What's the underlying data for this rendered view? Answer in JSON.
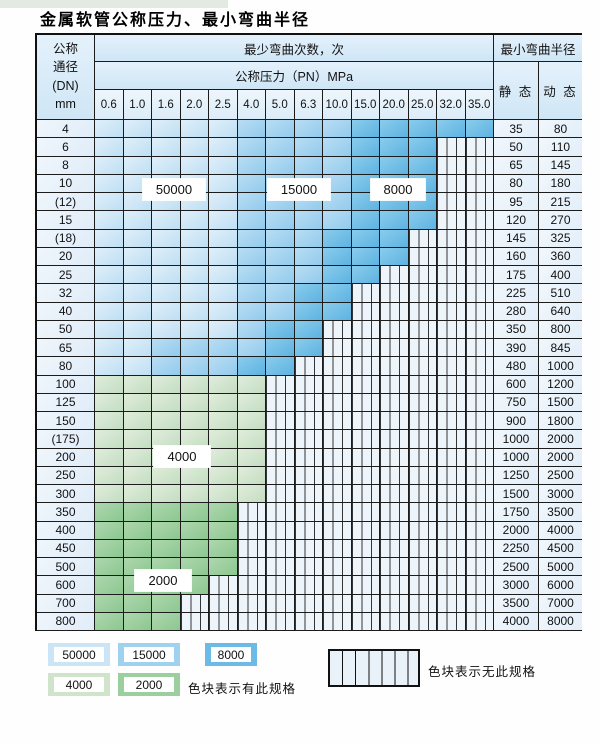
{
  "title": "金属软管公称压力、最小弯曲半径",
  "table": {
    "corner": {
      "line1": "公称",
      "line2": "通径",
      "line3": "(DN)",
      "line4": "mm"
    },
    "bend_header": "最少弯曲次数，次",
    "pressure_header": "公称压力（PN）MPa",
    "radius_header": "最小弯曲半径",
    "static_label": "静 态",
    "dynamic_label": "动 态",
    "pressures": [
      "0.6",
      "1.0",
      "1.6",
      "2.0",
      "2.5",
      "4.0",
      "5.0",
      "6.3",
      "10.0",
      "15.0",
      "20.0",
      "25.0",
      "32.0",
      "35.0"
    ],
    "rows": [
      {
        "dn": "4",
        "static": "35",
        "dynamic": "80",
        "cells": [
          "50000",
          "50000",
          "50000",
          "50000",
          "50000",
          "15000",
          "15000",
          "15000",
          "15000",
          "8000",
          "8000",
          "8000",
          "8000",
          "8000"
        ]
      },
      {
        "dn": "6",
        "static": "50",
        "dynamic": "110",
        "cells": [
          "50000",
          "50000",
          "50000",
          "50000",
          "50000",
          "15000",
          "15000",
          "15000",
          "15000",
          "8000",
          "8000",
          "8000",
          "",
          ""
        ]
      },
      {
        "dn": "8",
        "static": "65",
        "dynamic": "145",
        "cells": [
          "50000",
          "50000",
          "50000",
          "50000",
          "50000",
          "15000",
          "15000",
          "15000",
          "15000",
          "8000",
          "8000",
          "8000",
          "",
          ""
        ]
      },
      {
        "dn": "10",
        "static": "80",
        "dynamic": "180",
        "cells": [
          "50000",
          "50000",
          "50000",
          "50000",
          "50000",
          "15000",
          "15000",
          "15000",
          "15000",
          "8000",
          "8000",
          "8000",
          "",
          ""
        ]
      },
      {
        "dn": "(12)",
        "static": "95",
        "dynamic": "215",
        "cells": [
          "50000",
          "50000",
          "50000",
          "50000",
          "50000",
          "15000",
          "15000",
          "15000",
          "15000",
          "8000",
          "8000",
          "8000",
          "",
          ""
        ]
      },
      {
        "dn": "15",
        "static": "120",
        "dynamic": "270",
        "cells": [
          "50000",
          "50000",
          "50000",
          "50000",
          "50000",
          "15000",
          "15000",
          "15000",
          "15000",
          "8000",
          "8000",
          "8000",
          "",
          ""
        ]
      },
      {
        "dn": "(18)",
        "static": "145",
        "dynamic": "325",
        "cells": [
          "50000",
          "50000",
          "50000",
          "50000",
          "50000",
          "15000",
          "15000",
          "15000",
          "8000",
          "8000",
          "8000",
          "",
          "",
          ""
        ]
      },
      {
        "dn": "20",
        "static": "160",
        "dynamic": "360",
        "cells": [
          "50000",
          "50000",
          "50000",
          "50000",
          "50000",
          "15000",
          "15000",
          "15000",
          "8000",
          "8000",
          "8000",
          "",
          "",
          ""
        ]
      },
      {
        "dn": "25",
        "static": "175",
        "dynamic": "400",
        "cells": [
          "50000",
          "50000",
          "50000",
          "50000",
          "50000",
          "15000",
          "15000",
          "15000",
          "8000",
          "8000",
          "",
          "",
          "",
          ""
        ]
      },
      {
        "dn": "32",
        "static": "225",
        "dynamic": "510",
        "cells": [
          "50000",
          "50000",
          "50000",
          "50000",
          "50000",
          "15000",
          "15000",
          "8000",
          "8000",
          "",
          "",
          "",
          "",
          ""
        ]
      },
      {
        "dn": "40",
        "static": "280",
        "dynamic": "640",
        "cells": [
          "50000",
          "50000",
          "50000",
          "50000",
          "50000",
          "15000",
          "15000",
          "8000",
          "8000",
          "",
          "",
          "",
          "",
          ""
        ]
      },
      {
        "dn": "50",
        "static": "350",
        "dynamic": "800",
        "cells": [
          "50000",
          "50000",
          "50000",
          "50000",
          "50000",
          "15000",
          "8000",
          "8000",
          "",
          "",
          "",
          "",
          "",
          ""
        ]
      },
      {
        "dn": "65",
        "static": "390",
        "dynamic": "845",
        "cells": [
          "50000",
          "50000",
          "15000",
          "15000",
          "15000",
          "15000",
          "8000",
          "8000",
          "",
          "",
          "",
          "",
          "",
          ""
        ]
      },
      {
        "dn": "80",
        "static": "480",
        "dynamic": "1000",
        "cells": [
          "50000",
          "50000",
          "15000",
          "15000",
          "15000",
          "8000",
          "8000",
          "",
          "",
          "",
          "",
          "",
          "",
          ""
        ]
      },
      {
        "dn": "100",
        "static": "600",
        "dynamic": "1200",
        "cells": [
          "4000",
          "4000",
          "4000",
          "4000",
          "4000",
          "4000",
          "",
          "",
          "",
          "",
          "",
          "",
          "",
          ""
        ]
      },
      {
        "dn": "125",
        "static": "750",
        "dynamic": "1500",
        "cells": [
          "4000",
          "4000",
          "4000",
          "4000",
          "4000",
          "4000",
          "",
          "",
          "",
          "",
          "",
          "",
          "",
          ""
        ]
      },
      {
        "dn": "150",
        "static": "900",
        "dynamic": "1800",
        "cells": [
          "4000",
          "4000",
          "4000",
          "4000",
          "4000",
          "4000",
          "",
          "",
          "",
          "",
          "",
          "",
          "",
          ""
        ]
      },
      {
        "dn": "(175)",
        "static": "1000",
        "dynamic": "2000",
        "cells": [
          "4000",
          "4000",
          "4000",
          "4000",
          "4000",
          "4000",
          "",
          "",
          "",
          "",
          "",
          "",
          "",
          ""
        ]
      },
      {
        "dn": "200",
        "static": "1000",
        "dynamic": "2000",
        "cells": [
          "4000",
          "4000",
          "4000",
          "4000",
          "4000",
          "4000",
          "",
          "",
          "",
          "",
          "",
          "",
          "",
          ""
        ]
      },
      {
        "dn": "250",
        "static": "1250",
        "dynamic": "2500",
        "cells": [
          "4000",
          "4000",
          "4000",
          "4000",
          "4000",
          "4000",
          "",
          "",
          "",
          "",
          "",
          "",
          "",
          ""
        ]
      },
      {
        "dn": "300",
        "static": "1500",
        "dynamic": "3000",
        "cells": [
          "4000",
          "4000",
          "4000",
          "4000",
          "4000",
          "4000",
          "",
          "",
          "",
          "",
          "",
          "",
          "",
          ""
        ]
      },
      {
        "dn": "350",
        "static": "1750",
        "dynamic": "3500",
        "cells": [
          "2000",
          "2000",
          "2000",
          "2000",
          "2000",
          "",
          "",
          "",
          "",
          "",
          "",
          "",
          "",
          ""
        ]
      },
      {
        "dn": "400",
        "static": "2000",
        "dynamic": "4000",
        "cells": [
          "2000",
          "2000",
          "2000",
          "2000",
          "2000",
          "",
          "",
          "",
          "",
          "",
          "",
          "",
          "",
          ""
        ]
      },
      {
        "dn": "450",
        "static": "2250",
        "dynamic": "4500",
        "cells": [
          "2000",
          "2000",
          "2000",
          "2000",
          "2000",
          "",
          "",
          "",
          "",
          "",
          "",
          "",
          "",
          ""
        ]
      },
      {
        "dn": "500",
        "static": "2500",
        "dynamic": "5000",
        "cells": [
          "2000",
          "2000",
          "2000",
          "2000",
          "2000",
          "",
          "",
          "",
          "",
          "",
          "",
          "",
          "",
          ""
        ]
      },
      {
        "dn": "600",
        "static": "3000",
        "dynamic": "6000",
        "cells": [
          "2000",
          "2000",
          "2000",
          "2000",
          "",
          "",
          "",
          "",
          "",
          "",
          "",
          "",
          "",
          ""
        ]
      },
      {
        "dn": "700",
        "static": "3500",
        "dynamic": "7000",
        "cells": [
          "2000",
          "2000",
          "2000",
          "",
          "",
          "",
          "",
          "",
          "",
          "",
          "",
          "",
          "",
          ""
        ]
      },
      {
        "dn": "800",
        "static": "4000",
        "dynamic": "8000",
        "cells": [
          "2000",
          "2000",
          "2000",
          "",
          "",
          "",
          "",
          "",
          "",
          "",
          "",
          "",
          "",
          ""
        ]
      }
    ]
  },
  "overlays": [
    {
      "label": "50000"
    },
    {
      "label": "15000"
    },
    {
      "label": "8000"
    },
    {
      "label": "4000"
    },
    {
      "label": "2000"
    }
  ],
  "legend": {
    "items": [
      "50000",
      "15000",
      "8000",
      "4000",
      "2000"
    ],
    "available_text": "色块表示有此规格",
    "unavailable_text": "色块表示无此规格"
  },
  "colors": {
    "bend_50000": "#bedff3",
    "bend_15000": "#92cbec",
    "bend_8000": "#5db3e2",
    "bend_4000": "#c4ddc1",
    "bend_2000": "#8cc790",
    "no_spec_bg": "#edf4fa",
    "header_bg": "#d9ecf8",
    "grid_line": "#1c1c1c"
  }
}
